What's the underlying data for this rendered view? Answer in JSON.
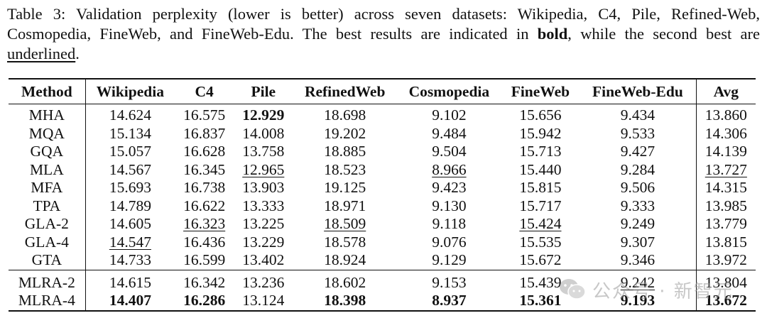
{
  "caption": {
    "text_before_bold": "Table 3: Validation perplexity (lower is better) across seven datasets: Wikipedia, C4, Pile, Refined-Web, Cosmopedia, FineWeb, and FineWeb-Edu. The best results are indicated in ",
    "bold_word": "bold",
    "text_between": ", while the second best are ",
    "underlined_word": "underlined",
    "text_end": "."
  },
  "table": {
    "headers": [
      "Method",
      "Wikipedia",
      "C4",
      "Pile",
      "RefinedWeb",
      "Cosmopedia",
      "FineWeb",
      "FineWeb-Edu",
      "Avg"
    ],
    "groups": [
      [
        {
          "method": "MHA",
          "values": [
            "14.624",
            "16.575",
            "12.929",
            "18.698",
            "9.102",
            "15.656",
            "9.434",
            "13.860"
          ],
          "styles": [
            "",
            "",
            "best",
            "",
            "",
            "",
            "",
            ""
          ]
        },
        {
          "method": "MQA",
          "values": [
            "15.134",
            "16.837",
            "14.008",
            "19.202",
            "9.484",
            "15.942",
            "9.533",
            "14.306"
          ],
          "styles": [
            "",
            "",
            "",
            "",
            "",
            "",
            "",
            ""
          ]
        },
        {
          "method": "GQA",
          "values": [
            "15.057",
            "16.628",
            "13.758",
            "18.885",
            "9.504",
            "15.713",
            "9.427",
            "14.139"
          ],
          "styles": [
            "",
            "",
            "",
            "",
            "",
            "",
            "",
            ""
          ]
        },
        {
          "method": "MLA",
          "values": [
            "14.567",
            "16.345",
            "12.965",
            "18.523",
            "8.966",
            "15.440",
            "9.284",
            "13.727"
          ],
          "styles": [
            "",
            "",
            "second",
            "",
            "second",
            "",
            "",
            "second"
          ]
        },
        {
          "method": "MFA",
          "values": [
            "15.693",
            "16.738",
            "13.903",
            "19.125",
            "9.423",
            "15.815",
            "9.506",
            "14.315"
          ],
          "styles": [
            "",
            "",
            "",
            "",
            "",
            "",
            "",
            ""
          ]
        },
        {
          "method": "TPA",
          "values": [
            "14.789",
            "16.622",
            "13.333",
            "18.971",
            "9.130",
            "15.717",
            "9.333",
            "13.985"
          ],
          "styles": [
            "",
            "",
            "",
            "",
            "",
            "",
            "",
            ""
          ]
        },
        {
          "method": "GLA-2",
          "values": [
            "14.605",
            "16.323",
            "13.225",
            "18.509",
            "9.118",
            "15.424",
            "9.249",
            "13.779"
          ],
          "styles": [
            "",
            "second",
            "",
            "second",
            "",
            "second",
            "",
            ""
          ]
        },
        {
          "method": "GLA-4",
          "values": [
            "14.547",
            "16.436",
            "13.229",
            "18.578",
            "9.076",
            "15.535",
            "9.307",
            "13.815"
          ],
          "styles": [
            "second",
            "",
            "",
            "",
            "",
            "",
            "",
            ""
          ]
        },
        {
          "method": "GTA",
          "values": [
            "14.733",
            "16.599",
            "13.402",
            "18.924",
            "9.129",
            "15.672",
            "9.346",
            "13.972"
          ],
          "styles": [
            "",
            "",
            "",
            "",
            "",
            "",
            "",
            ""
          ]
        }
      ],
      [
        {
          "method": "MLRA-2",
          "values": [
            "14.615",
            "16.342",
            "13.236",
            "18.602",
            "9.153",
            "15.439",
            "9.242",
            "13.804"
          ],
          "styles": [
            "",
            "",
            "",
            "",
            "",
            "",
            "second",
            ""
          ]
        },
        {
          "method": "MLRA-4",
          "values": [
            "14.407",
            "16.286",
            "13.124",
            "18.398",
            "8.937",
            "15.361",
            "9.193",
            "13.672"
          ],
          "styles": [
            "best",
            "best",
            "",
            "best",
            "best",
            "best",
            "best",
            "best"
          ]
        }
      ]
    ]
  },
  "watermark": {
    "text": "公众号 · 新智元",
    "icon": "wechat-icon"
  }
}
